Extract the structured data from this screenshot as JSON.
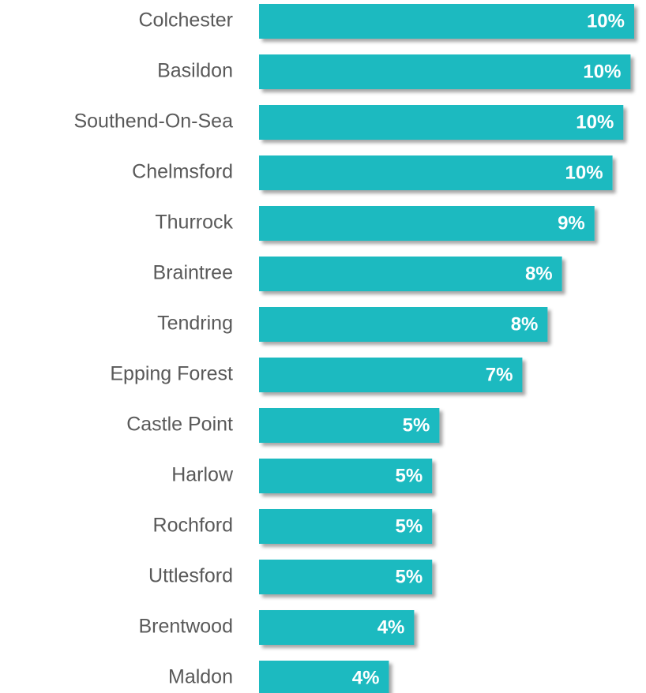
{
  "chart_data": {
    "type": "bar",
    "orientation": "horizontal",
    "color": "#1fbac0",
    "categories": [
      "Colchester",
      "Basildon",
      "Southend-On-Sea",
      "Chelmsford",
      "Thurrock",
      "Braintree",
      "Tendring",
      "Epping Forest",
      "Castle Point",
      "Harlow",
      "Rochford",
      "Uttlesford",
      "Brentwood",
      "Maldon"
    ],
    "values": [
      10.4,
      10.3,
      10.1,
      9.8,
      9.3,
      8.4,
      8.0,
      7.3,
      5.0,
      4.8,
      4.8,
      4.8,
      4.3,
      3.6
    ],
    "value_labels": [
      "10%",
      "10%",
      "10%",
      "10%",
      "9%",
      "8%",
      "8%",
      "7%",
      "5%",
      "5%",
      "5%",
      "5%",
      "4%",
      "4%"
    ]
  }
}
